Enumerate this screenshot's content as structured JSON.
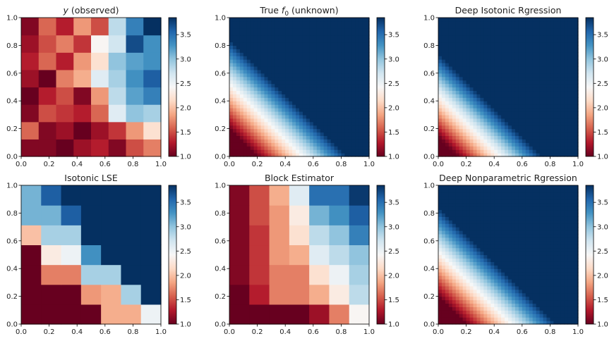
{
  "figure": {
    "colormap": "RdBu",
    "vmin": 1.0,
    "vmax": 3.85
  },
  "chart_data": [
    {
      "type": "heatmap",
      "id": "observed",
      "title_italic": "y",
      "title_rest": " (observed)",
      "xlim": [
        0,
        1
      ],
      "ylim": [
        0,
        1
      ],
      "xticks": [
        "0.0",
        "0.2",
        "0.4",
        "0.6",
        "0.8",
        "1.0"
      ],
      "yticks": [
        "0.0",
        "0.2",
        "0.4",
        "0.6",
        "0.8",
        "1.0"
      ],
      "colorbar_ticks": [
        "1.0",
        "1.5",
        "2.0",
        "2.5",
        "3.0",
        "3.5"
      ],
      "grid_cols": 8,
      "grid_rows": 8,
      "z": [
        [
          1.1,
          1.1,
          1.0,
          1.2,
          1.3,
          1.1,
          1.5,
          1.7
        ],
        [
          1.6,
          1.1,
          1.2,
          1.0,
          1.2,
          1.4,
          1.8,
          2.2
        ],
        [
          1.1,
          1.5,
          1.4,
          1.3,
          1.6,
          2.6,
          3.0,
          2.9
        ],
        [
          1.0,
          1.3,
          1.5,
          1.1,
          1.8,
          2.8,
          3.2,
          3.4
        ],
        [
          1.2,
          1.0,
          1.7,
          1.9,
          2.6,
          2.9,
          3.3,
          3.6
        ],
        [
          1.3,
          1.6,
          1.3,
          1.8,
          2.2,
          3.0,
          3.2,
          3.3
        ],
        [
          1.2,
          1.5,
          1.7,
          1.4,
          2.4,
          2.7,
          3.7,
          3.3
        ],
        [
          1.1,
          1.6,
          1.3,
          1.8,
          1.5,
          2.8,
          3.4,
          3.9
        ]
      ]
    },
    {
      "type": "heatmap",
      "id": "true-f0",
      "title_pre": "True ",
      "title_italic": "f",
      "title_sub": "0",
      "title_rest": " (unknown)",
      "xlim": [
        0,
        1
      ],
      "ylim": [
        0,
        1
      ],
      "xticks": [
        "0.0",
        "0.2",
        "0.4",
        "0.6",
        "0.8",
        "1.0"
      ],
      "yticks": [
        "0.0",
        "0.2",
        "0.4",
        "0.6",
        "0.8",
        "1.0"
      ],
      "colorbar_ticks": [
        "1.0",
        "1.5",
        "2.0",
        "2.5",
        "3.0",
        "3.5"
      ],
      "function": "1 + 3.3*clip((x+y-0.20)/0.75,0,1)"
    },
    {
      "type": "heatmap",
      "id": "deep-isotonic",
      "title": "Deep Isotonic Rgression",
      "xlim": [
        0,
        1
      ],
      "ylim": [
        0,
        1
      ],
      "xticks": [
        "0.0",
        "0.2",
        "0.4",
        "0.6",
        "0.8",
        "1.0"
      ],
      "yticks": [
        "0.0",
        "0.2",
        "0.4",
        "0.6",
        "0.8",
        "1.0"
      ],
      "colorbar_ticks": [
        "1.0",
        "1.5",
        "2.0",
        "2.5",
        "3.0",
        "3.5"
      ],
      "function": "1 + 3.3*clip((x+y-0.14)/0.70,0,1)"
    },
    {
      "type": "heatmap",
      "id": "isotonic-lse",
      "title": "Isotonic LSE",
      "xlim": [
        0,
        1
      ],
      "ylim": [
        0,
        1
      ],
      "xticks": [
        "0.0",
        "0.2",
        "0.4",
        "0.6",
        "0.8",
        "1.0"
      ],
      "yticks": [
        "0.0",
        "0.2",
        "0.4",
        "0.6",
        "0.8",
        "1.0"
      ],
      "colorbar_ticks": [
        "1.0",
        "1.5",
        "2.0",
        "2.5",
        "3.0",
        "3.5"
      ],
      "grid_cols": 7,
      "grid_rows": 7,
      "z": [
        [
          1.0,
          1.0,
          1.0,
          1.0,
          1.9,
          1.9,
          2.5
        ],
        [
          1.0,
          1.0,
          1.0,
          1.8,
          1.9,
          2.9,
          4.0
        ],
        [
          1.0,
          1.7,
          1.7,
          2.9,
          2.9,
          4.0,
          4.0
        ],
        [
          1.0,
          2.3,
          2.5,
          3.3,
          4.0,
          4.0,
          4.0
        ],
        [
          2.0,
          2.9,
          2.9,
          4.0,
          4.0,
          4.0,
          4.0
        ],
        [
          3.1,
          3.1,
          3.6,
          4.0,
          4.0,
          4.0,
          4.0
        ],
        [
          3.1,
          3.6,
          4.0,
          4.0,
          4.0,
          4.0,
          4.0
        ]
      ]
    },
    {
      "type": "heatmap",
      "id": "block-estimator",
      "title": "Block Estimator",
      "xlim": [
        0,
        1
      ],
      "ylim": [
        0,
        1
      ],
      "xticks": [
        "0.0",
        "0.2",
        "0.4",
        "0.6",
        "0.8",
        "1.0"
      ],
      "yticks": [
        "0.0",
        "0.2",
        "0.4",
        "0.6",
        "0.8",
        "1.0"
      ],
      "colorbar_ticks": [
        "1.0",
        "1.5",
        "2.0",
        "2.5",
        "3.0",
        "3.5"
      ],
      "grid_cols": 7,
      "grid_rows": 7,
      "z": [
        [
          1.0,
          1.0,
          1.0,
          1.0,
          1.2,
          1.7,
          2.4
        ],
        [
          1.0,
          1.3,
          1.7,
          1.7,
          1.9,
          2.3,
          2.8
        ],
        [
          1.1,
          1.4,
          1.7,
          1.7,
          2.2,
          2.5,
          2.9
        ],
        [
          1.1,
          1.4,
          1.8,
          1.9,
          2.6,
          2.8,
          3.0
        ],
        [
          1.1,
          1.4,
          1.8,
          2.2,
          2.8,
          3.0,
          3.4
        ],
        [
          1.1,
          1.5,
          1.8,
          2.3,
          3.1,
          3.3,
          3.6
        ],
        [
          1.1,
          1.5,
          1.9,
          2.6,
          3.5,
          3.5,
          3.8
        ]
      ]
    },
    {
      "type": "heatmap",
      "id": "deep-nonparametric",
      "title": "Deep Nonparametric Rgression",
      "xlim": [
        0,
        1
      ],
      "ylim": [
        0,
        1
      ],
      "xticks": [
        "0.0",
        "0.2",
        "0.4",
        "0.6",
        "0.8",
        "1.0"
      ],
      "yticks": [
        "0.0",
        "0.2",
        "0.4",
        "0.6",
        "0.8",
        "1.0"
      ],
      "colorbar_ticks": [
        "1.0",
        "1.5",
        "2.0",
        "2.5",
        "3.0",
        "3.5"
      ],
      "function": "1 + 3.3*clip((x+y-0.20)/0.75,0,1)"
    }
  ]
}
